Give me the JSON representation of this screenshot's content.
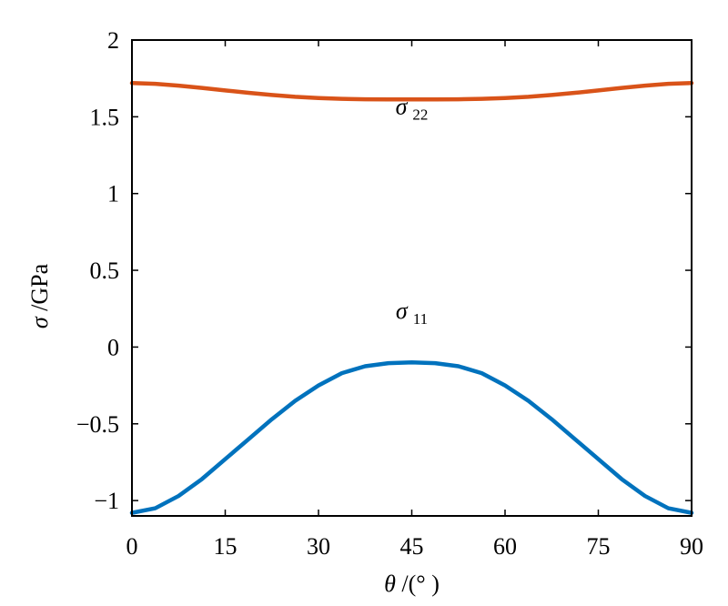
{
  "chart_data": {
    "type": "line",
    "title": "",
    "xlabel_symbol": "θ",
    "xlabel_rest": " /(°  )",
    "ylabel_symbol": "σ",
    "ylabel_rest": " /GPa",
    "xlim": [
      0,
      90
    ],
    "ylim": [
      -1.1,
      2
    ],
    "xticks": [
      0,
      15,
      30,
      45,
      60,
      75,
      90
    ],
    "xtick_labels": [
      "0",
      "15",
      "30",
      "45",
      "60",
      "75",
      "90"
    ],
    "yticks": [
      -1,
      -0.5,
      0,
      0.5,
      1,
      1.5,
      2
    ],
    "ytick_labels": [
      "−1",
      "−0.5",
      "0",
      "0.5",
      "1",
      "1.5",
      "2"
    ],
    "grid": false,
    "legend": "none",
    "series": [
      {
        "symbol": "σ",
        "subscript": "22",
        "label_at": [
          45,
          1.57
        ],
        "color": "#D95319",
        "x": [
          0,
          3.75,
          7.5,
          11.25,
          15,
          18.75,
          22.5,
          26.25,
          30,
          33.75,
          37.5,
          41.25,
          45,
          48.75,
          52.5,
          56.25,
          60,
          63.75,
          67.5,
          71.25,
          75,
          78.75,
          82.5,
          86.25,
          90
        ],
        "y": [
          1.72,
          1.715,
          1.703,
          1.688,
          1.672,
          1.656,
          1.642,
          1.63,
          1.622,
          1.617,
          1.614,
          1.613,
          1.613,
          1.613,
          1.614,
          1.617,
          1.622,
          1.63,
          1.642,
          1.656,
          1.672,
          1.688,
          1.703,
          1.715,
          1.72
        ]
      },
      {
        "symbol": "σ",
        "subscript": "11",
        "label_at": [
          45,
          0.24
        ],
        "color": "#0072BD",
        "x": [
          0,
          3.75,
          7.5,
          11.25,
          15,
          18.75,
          22.5,
          26.25,
          30,
          33.75,
          37.5,
          41.25,
          45,
          48.75,
          52.5,
          56.25,
          60,
          63.75,
          67.5,
          71.25,
          75,
          78.75,
          82.5,
          86.25,
          90
        ],
        "y": [
          -1.08,
          -1.05,
          -0.97,
          -0.86,
          -0.73,
          -0.6,
          -0.47,
          -0.35,
          -0.25,
          -0.17,
          -0.125,
          -0.105,
          -0.1,
          -0.105,
          -0.125,
          -0.17,
          -0.25,
          -0.35,
          -0.47,
          -0.6,
          -0.73,
          -0.86,
          -0.97,
          -1.05,
          -1.08
        ]
      }
    ]
  }
}
